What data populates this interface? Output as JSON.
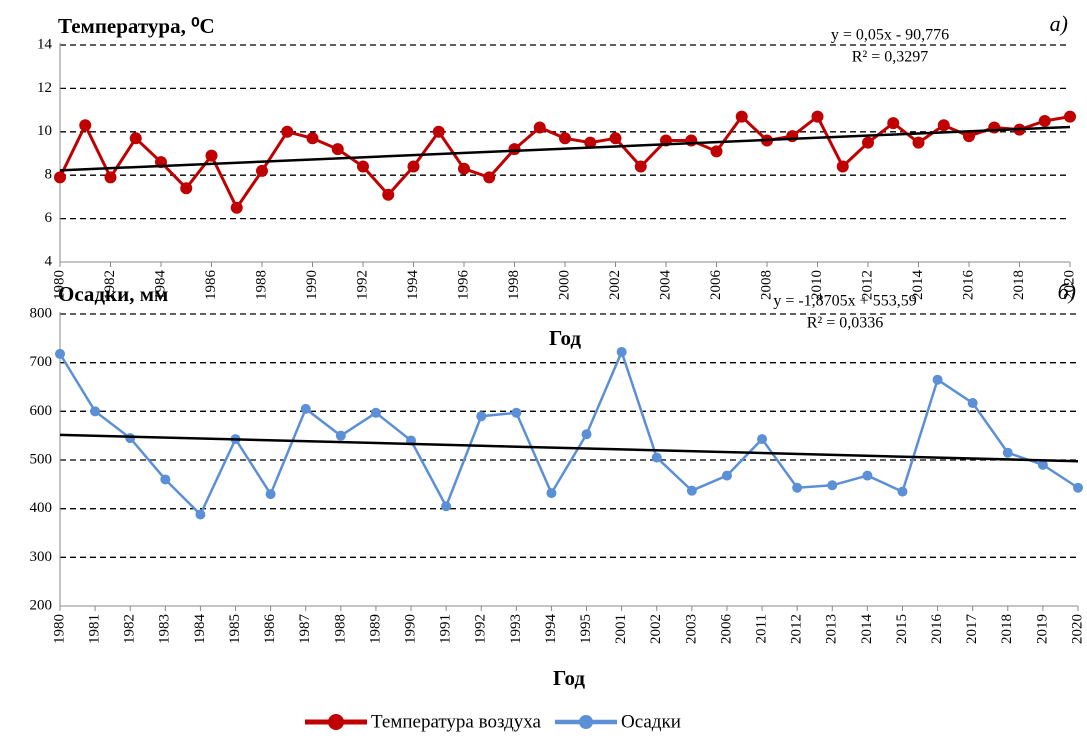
{
  "chart_data": [
    {
      "type": "line",
      "title": "Температура, ⁰C",
      "panel_label": "а)",
      "x_label": "Год",
      "x": [
        1980,
        1981,
        1982,
        1983,
        1984,
        1985,
        1986,
        1987,
        1988,
        1989,
        1990,
        1991,
        1992,
        1993,
        1994,
        1995,
        1996,
        1997,
        1998,
        1999,
        2000,
        2001,
        2002,
        2003,
        2004,
        2005,
        2006,
        2007,
        2008,
        2009,
        2010,
        2011,
        2012,
        2013,
        2014,
        2015,
        2016,
        2017,
        2018,
        2019,
        2020
      ],
      "series": [
        {
          "name": "Температура воздуха",
          "color": "#c00000",
          "values": [
            7.9,
            10.3,
            7.9,
            9.7,
            8.6,
            7.4,
            8.9,
            6.5,
            8.2,
            10.0,
            9.7,
            9.2,
            8.4,
            7.1,
            8.4,
            10.0,
            8.3,
            7.9,
            9.2,
            10.2,
            9.7,
            9.5,
            9.7,
            8.4,
            9.6,
            9.6,
            9.1,
            10.7,
            9.6,
            9.8,
            10.7,
            8.4,
            9.5,
            10.4,
            9.5,
            10.3,
            9.8,
            10.2,
            10.1,
            10.5,
            10.7
          ]
        }
      ],
      "xlim": [
        1980,
        2020
      ],
      "xticks": [
        1980,
        1982,
        1984,
        1986,
        1988,
        1990,
        1992,
        1994,
        1996,
        1998,
        2000,
        2002,
        2004,
        2006,
        2008,
        2010,
        2012,
        2014,
        2016,
        2018,
        2020
      ],
      "ylim": [
        4,
        14
      ],
      "yticks": [
        4,
        6,
        8,
        10,
        12,
        14
      ],
      "grid": true,
      "trendline": {
        "equation": "y = 0,05x - 90,776",
        "r_squared": "R² = 0,3297",
        "slope": 0.05,
        "intercept": -90.776
      }
    },
    {
      "type": "line",
      "title": "Осадки, мм",
      "panel_label": "б)",
      "x_label": "Год",
      "categories": [
        "1980",
        "1981",
        "1982",
        "1983",
        "1984",
        "1985",
        "1986",
        "1987",
        "1988",
        "1989",
        "1990",
        "1991",
        "1992",
        "1993",
        "1994",
        "1995",
        "2001",
        "2002",
        "2003",
        "2006",
        "2011",
        "2012",
        "2013",
        "2014",
        "2015",
        "2016",
        "2017",
        "2018",
        "2019",
        "2020"
      ],
      "series": [
        {
          "name": "Осадки",
          "color": "#5b8fd6",
          "values": [
            718,
            600,
            545,
            460,
            388,
            543,
            430,
            605,
            550,
            597,
            540,
            405,
            590,
            597,
            432,
            553,
            722,
            505,
            437,
            468,
            543,
            443,
            448,
            468,
            435,
            665,
            617,
            515,
            490,
            443
          ]
        }
      ],
      "ylim": [
        200,
        800
      ],
      "yticks": [
        200,
        300,
        400,
        500,
        600,
        700,
        800
      ],
      "grid": true,
      "trendline": {
        "equation": "y = -1,8705x + 553,59",
        "r_squared": "R² = 0,0336",
        "slope": -1.8705,
        "intercept": 553.59
      }
    }
  ]
}
